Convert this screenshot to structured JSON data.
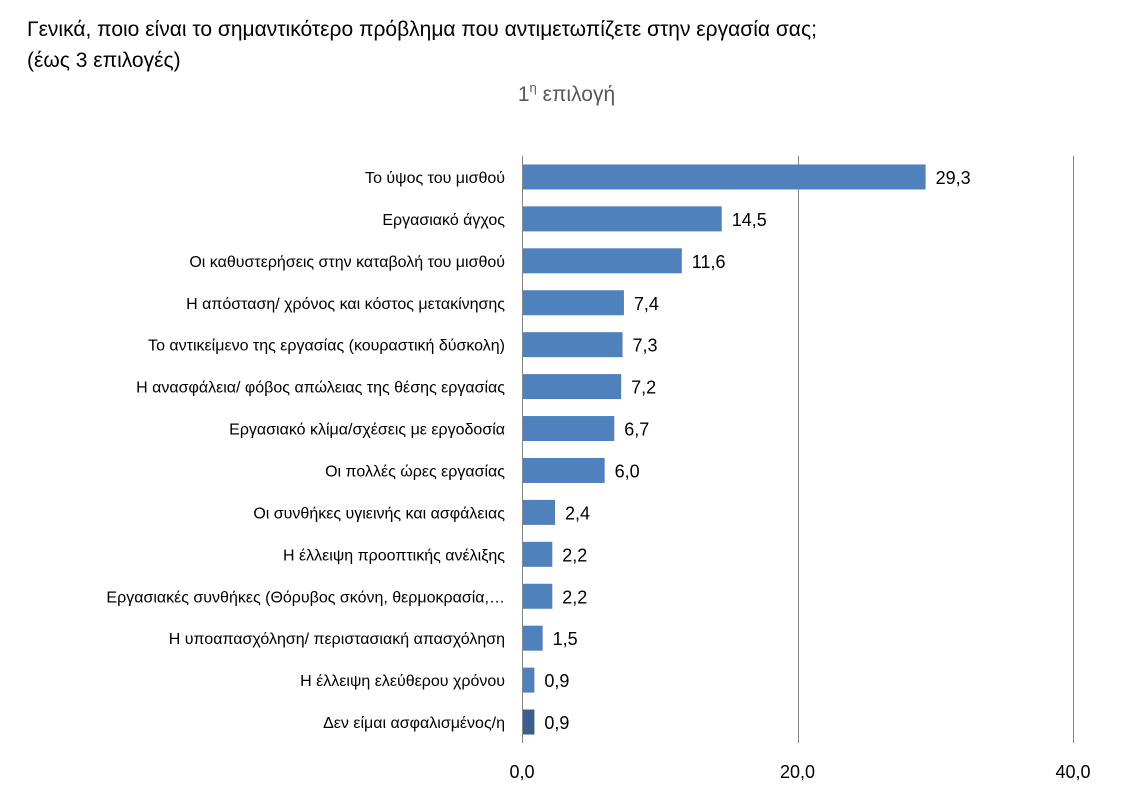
{
  "question": {
    "line1": "Γενικά, ποιο είναι το σημαντικότερο πρόβλημα που αντιμετωπίζετε στην εργασία σας;",
    "line2": "(έως 3 επιλογές)"
  },
  "chart_data": {
    "type": "bar",
    "orientation": "horizontal",
    "title_main": "1",
    "title_sup": "η",
    "title_rest": " επιλογή",
    "categories": [
      "Το ύψος του μισθού",
      "Εργασιακό άγχος",
      "Οι καθυστερήσεις στην καταβολή του μισθού",
      "Η απόσταση/  χρόνος και κόστος μετακίνησης",
      "Το αντικείμενο της εργασίας (κουραστική δύσκολη)",
      "Η ανασφάλεια/ φόβος απώλειας της θέσης εργασίας",
      "Εργασιακό κλίμα/σχέσεις με εργοδοσία",
      "Οι πολλές ώρες εργασίας",
      "Οι συνθήκες υγιεινής και ασφάλειας",
      "Η έλλειψη προοπτικής ανέλιξης",
      "Εργασιακές συνθήκες (Θόρυβος σκόνη, θερμοκρασία,…",
      "Η υποαπασχόληση/ περιστασιακή απασχόληση",
      "Η έλλειψη ελεύθερου χρόνου",
      "Δεν είμαι ασφαλισμένος/η"
    ],
    "values": [
      29.3,
      14.5,
      11.6,
      7.4,
      7.3,
      7.2,
      6.7,
      6.0,
      2.4,
      2.2,
      2.2,
      1.5,
      0.9,
      0.9
    ],
    "value_labels": [
      "29,3",
      "14,5",
      "11,6",
      "7,4",
      "7,3",
      "7,2",
      "6,7",
      "6,0",
      "2,4",
      "2,2",
      "2,2",
      "1,5",
      "0,9",
      "0,9"
    ],
    "xlim": [
      0,
      40
    ],
    "xticks": [
      0,
      20,
      40
    ],
    "xtick_labels": [
      "0,0",
      "20,0",
      "40,0"
    ],
    "grid": true,
    "bar_color": "#4f81bd",
    "highlight_color": "#3a5f8f",
    "highlight_index": 13
  }
}
